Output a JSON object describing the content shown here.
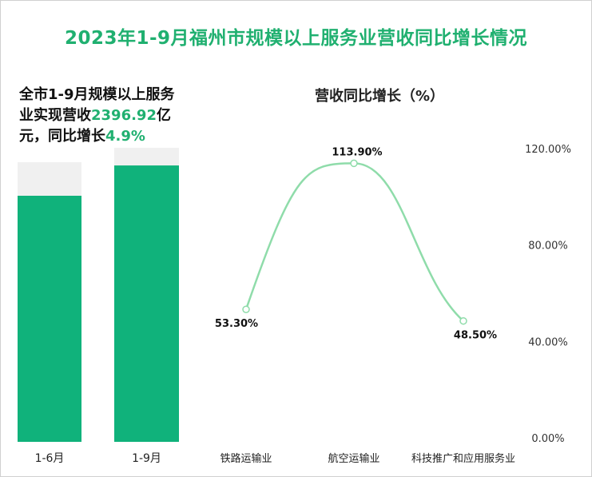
{
  "title": "2023年1-9月福州市规模以上服务业营收同比增长情况",
  "left_panel": {
    "summary_part1": "全市1-9月规模以上服务业实现营收",
    "summary_value": "2396.92",
    "summary_part2": "亿元，同比增长",
    "summary_growth": "4.9%",
    "colors": {
      "bar": "#10b27b",
      "background": "#f0f0f0"
    }
  },
  "right_panel": {
    "title": "营收同比增长（%）",
    "line_color": "#8fdcaa"
  },
  "chart_data": [
    {
      "type": "bar",
      "categories": [
        "1-6月",
        "1-9月"
      ],
      "values": [
        0.88,
        0.94
      ],
      "note_value_scale": "fraction of background column"
    },
    {
      "type": "line",
      "title": "营收同比增长（%）",
      "categories": [
        "铁路运输业",
        "航空运输业",
        "科技推广和应用服务业"
      ],
      "values": [
        53.3,
        113.9,
        48.5
      ],
      "data_labels": [
        "53.30%",
        "113.90%",
        "48.50%"
      ],
      "y_axis": {
        "ticks": [
          "0.00%",
          "40.00%",
          "80.00%",
          "120.00%"
        ],
        "range": [
          0,
          120
        ],
        "position": "right"
      },
      "smooth": true
    }
  ]
}
